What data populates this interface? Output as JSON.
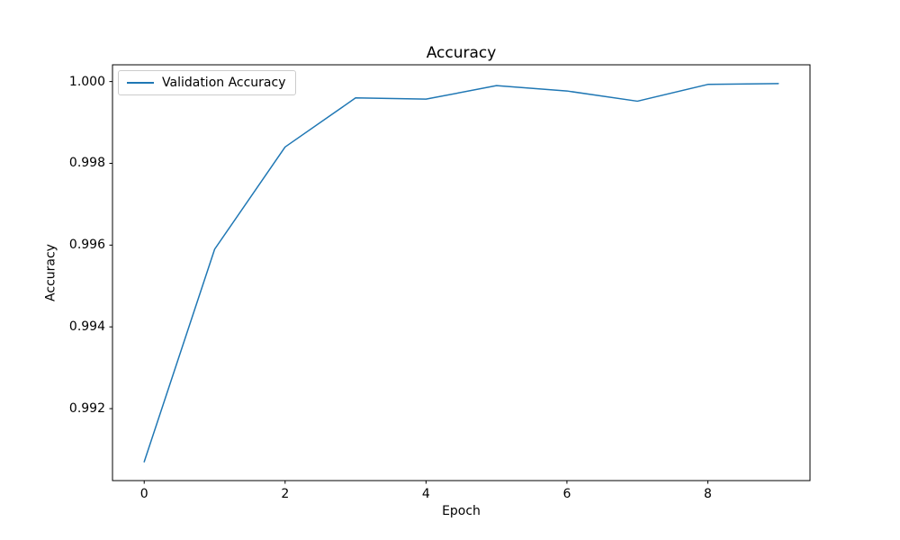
{
  "chart_data": {
    "type": "line",
    "title": "Accuracy",
    "xlabel": "Epoch",
    "ylabel": "Accuracy",
    "x": [
      0,
      1,
      2,
      3,
      4,
      5,
      6,
      7,
      8,
      9
    ],
    "series": [
      {
        "name": "Validation Accuracy",
        "color": "#1f77b4",
        "values": [
          0.9907,
          0.9959,
          0.9984,
          0.9996,
          0.99957,
          0.9999,
          0.99977,
          0.99952,
          0.99993,
          0.99995
        ]
      }
    ],
    "xlim": [
      -0.45,
      9.45
    ],
    "ylim": [
      0.99024,
      1.00041
    ],
    "xticks": {
      "values": [
        0,
        2,
        4,
        6,
        8
      ],
      "labels": [
        "0",
        "2",
        "4",
        "6",
        "8"
      ]
    },
    "yticks": {
      "values": [
        0.992,
        0.994,
        0.996,
        0.998,
        1.0
      ],
      "labels": [
        "0.992",
        "0.994",
        "0.996",
        "0.998",
        "1.000"
      ]
    },
    "legend": {
      "position": "upper left",
      "entries": [
        "Validation Accuracy"
      ]
    },
    "grid": false,
    "line_width": 1.5,
    "axis_color": "#000000",
    "background": "#ffffff"
  }
}
